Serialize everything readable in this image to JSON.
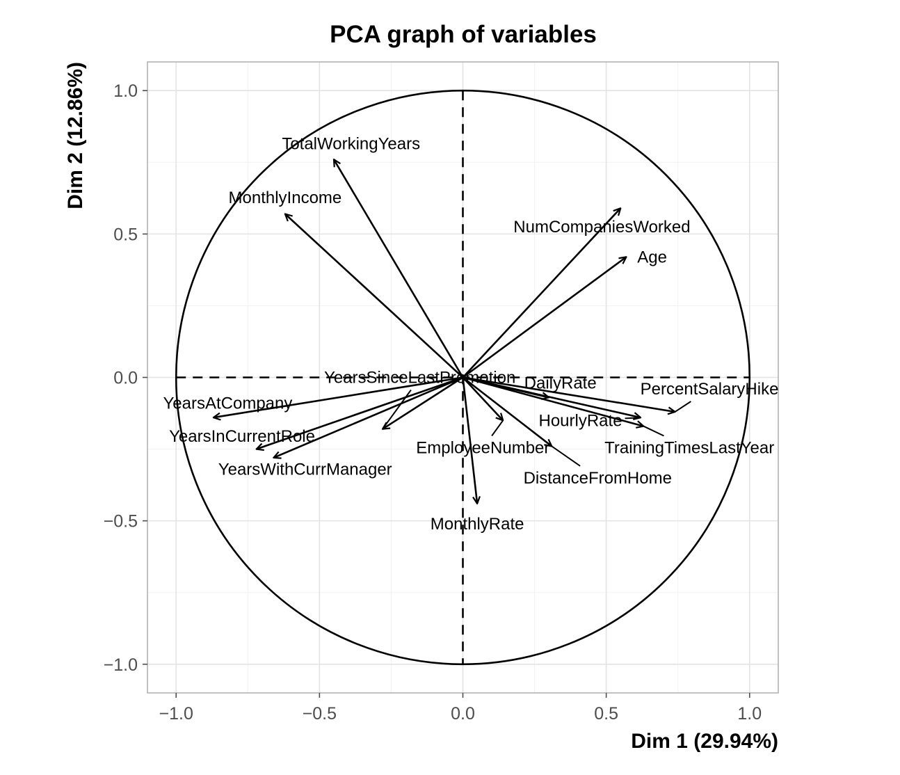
{
  "chart_data": {
    "type": "scatter",
    "title": "PCA graph of variables",
    "xlabel": "Dim 1 (29.94%)",
    "ylabel": "Dim 2 (12.86%)",
    "xlim": [
      -1.1,
      1.1
    ],
    "ylim": [
      -1.1,
      1.1
    ],
    "xticks": [
      -1.0,
      -0.5,
      0.0,
      0.5,
      1.0
    ],
    "yticks": [
      -1.0,
      -0.5,
      0.0,
      0.5,
      1.0
    ],
    "xtick_labels": [
      "−1.0",
      "−0.5",
      "0.0",
      "0.5",
      "1.0"
    ],
    "ytick_labels": [
      "1.0",
      "0.5",
      "0.0",
      "−0.5",
      "−1.0"
    ],
    "grid": true,
    "correlation_circle": true,
    "variables": [
      {
        "name": "TotalWorkingYears",
        "x": -0.45,
        "y": 0.76,
        "label_x": -0.39,
        "label_y": 0.815
      },
      {
        "name": "MonthlyIncome",
        "x": -0.62,
        "y": 0.57,
        "label_x": -0.62,
        "label_y": 0.627
      },
      {
        "name": "NumCompaniesWorked",
        "x": 0.55,
        "y": 0.59,
        "label_x": 0.485,
        "label_y": 0.525
      },
      {
        "name": "Age",
        "x": 0.57,
        "y": 0.42,
        "label_x": 0.66,
        "label_y": 0.42
      },
      {
        "name": "YearsSinceLastPromotion",
        "x": -0.28,
        "y": -0.18,
        "label_x": -0.15,
        "label_y": 0.0
      },
      {
        "name": "YearsAtCompany",
        "x": -0.87,
        "y": -0.14,
        "label_x": -0.82,
        "label_y": -0.09
      },
      {
        "name": "YearsInCurrentRole",
        "x": -0.72,
        "y": -0.25,
        "label_x": -0.77,
        "label_y": -0.205
      },
      {
        "name": "YearsWithCurrManager",
        "x": -0.66,
        "y": -0.28,
        "label_x": -0.55,
        "label_y": -0.32
      },
      {
        "name": "DailyRate",
        "x": 0.3,
        "y": -0.07,
        "label_x": 0.34,
        "label_y": -0.02
      },
      {
        "name": "PercentSalaryHike",
        "x": 0.74,
        "y": -0.12,
        "label_x": 0.86,
        "label_y": -0.04
      },
      {
        "name": "HourlyRate",
        "x": 0.62,
        "y": -0.14,
        "label_x": 0.41,
        "label_y": -0.15
      },
      {
        "name": "TrainingTimesLastYear",
        "x": 0.63,
        "y": -0.17,
        "label_x": 0.79,
        "label_y": -0.245
      },
      {
        "name": "EmployeeNumber",
        "x": 0.14,
        "y": -0.15,
        "label_x": 0.07,
        "label_y": -0.245
      },
      {
        "name": "DistanceFromHome",
        "x": 0.31,
        "y": -0.24,
        "label_x": 0.47,
        "label_y": -0.35
      },
      {
        "name": "MonthlyRate",
        "x": 0.05,
        "y": -0.44,
        "label_x": 0.05,
        "label_y": -0.51
      }
    ]
  }
}
